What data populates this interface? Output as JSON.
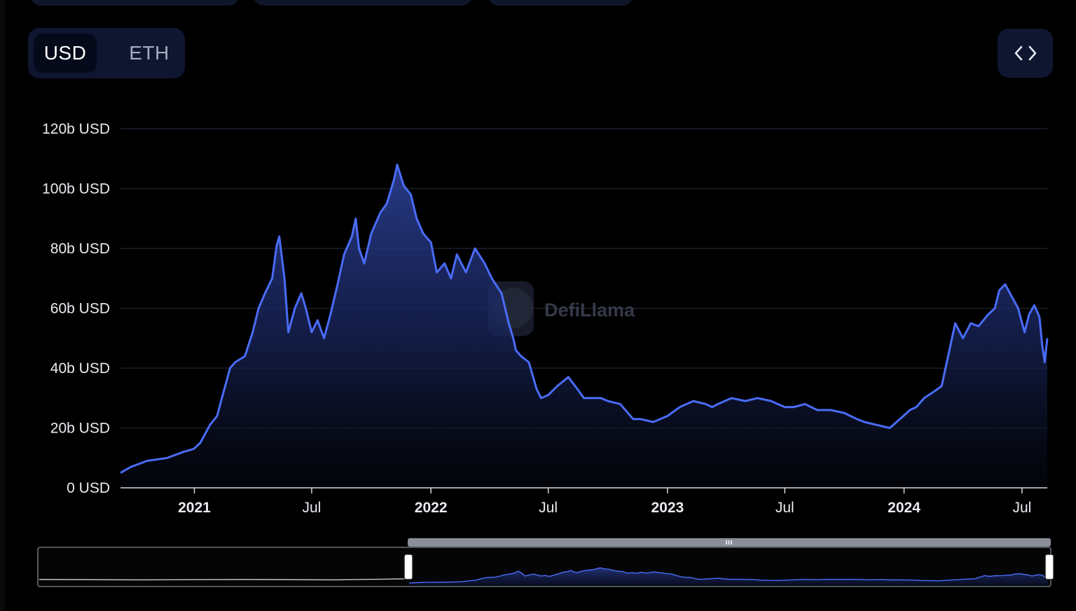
{
  "currency_toggle": {
    "options": [
      "USD",
      "ETH"
    ],
    "selected": "USD"
  },
  "embed_icon": "code-brackets-icon",
  "watermark": "DefiLlama",
  "colors": {
    "line": "#4a6cf7",
    "area_top": "#2a3d8f",
    "grid": "#1c1f2a",
    "panel": "#0e1630"
  },
  "chart_data": {
    "type": "area",
    "title": "",
    "xlabel": "",
    "ylabel": "",
    "y_tick_labels": [
      "0 USD",
      "20b USD",
      "40b USD",
      "60b USD",
      "80b USD",
      "100b USD",
      "120b USD"
    ],
    "x_tick_labels": [
      {
        "label": "2021",
        "year": true
      },
      {
        "label": "Jul",
        "year": false
      },
      {
        "label": "2022",
        "year": true
      },
      {
        "label": "Jul",
        "year": false
      },
      {
        "label": "2023",
        "year": true
      },
      {
        "label": "Jul",
        "year": false
      },
      {
        "label": "2024",
        "year": true
      },
      {
        "label": "Jul",
        "year": false
      }
    ],
    "xlim": [
      "2020-09-09",
      "2024-08-09"
    ],
    "ylim": [
      0,
      120
    ],
    "unit": "billion USD",
    "grid": true,
    "series": [
      {
        "x": [
          "2020-09-09",
          "2020-09-25",
          "2020-10-20",
          "2020-11-20",
          "2020-12-15",
          "2020-12-31",
          "2021-01-10",
          "2021-01-25",
          "2021-02-05",
          "2021-02-15",
          "2021-02-25",
          "2021-03-05",
          "2021-03-20",
          "2021-04-01",
          "2021-04-10",
          "2021-04-20",
          "2021-05-01",
          "2021-05-08",
          "2021-05-12",
          "2021-05-20",
          "2021-05-26",
          "2021-06-05",
          "2021-06-15",
          "2021-06-22",
          "2021-07-01",
          "2021-07-10",
          "2021-07-20",
          "2021-07-30",
          "2021-08-10",
          "2021-08-20",
          "2021-09-01",
          "2021-09-07",
          "2021-09-12",
          "2021-09-20",
          "2021-10-01",
          "2021-10-15",
          "2021-10-25",
          "2021-11-05",
          "2021-11-10",
          "2021-11-20",
          "2021-12-01",
          "2021-12-10",
          "2021-12-20",
          "2022-01-01",
          "2022-01-10",
          "2022-01-22",
          "2022-02-01",
          "2022-02-10",
          "2022-02-24",
          "2022-03-10",
          "2022-03-25",
          "2022-04-05",
          "2022-04-20",
          "2022-05-01",
          "2022-05-08",
          "2022-05-12",
          "2022-05-20",
          "2022-06-01",
          "2022-06-13",
          "2022-06-20",
          "2022-07-01",
          "2022-07-15",
          "2022-08-01",
          "2022-08-15",
          "2022-08-25",
          "2022-09-05",
          "2022-09-20",
          "2022-10-01",
          "2022-10-20",
          "2022-11-05",
          "2022-11-09",
          "2022-11-20",
          "2022-12-10",
          "2023-01-01",
          "2023-01-20",
          "2023-02-10",
          "2023-03-01",
          "2023-03-11",
          "2023-03-20",
          "2023-04-10",
          "2023-05-01",
          "2023-05-20",
          "2023-06-10",
          "2023-06-20",
          "2023-07-01",
          "2023-07-15",
          "2023-08-01",
          "2023-08-20",
          "2023-09-10",
          "2023-10-01",
          "2023-10-20",
          "2023-11-01",
          "2023-11-20",
          "2023-12-10",
          "2023-12-31",
          "2024-01-10",
          "2024-01-20",
          "2024-02-01",
          "2024-02-15",
          "2024-02-28",
          "2024-03-10",
          "2024-03-20",
          "2024-04-01",
          "2024-04-13",
          "2024-04-25",
          "2024-05-10",
          "2024-05-20",
          "2024-05-27",
          "2024-06-05",
          "2024-06-15",
          "2024-06-25",
          "2024-07-05",
          "2024-07-12",
          "2024-07-20",
          "2024-07-28",
          "2024-08-01",
          "2024-08-05",
          "2024-08-09"
        ],
        "y": [
          5,
          7,
          9,
          10,
          12,
          13,
          15,
          21,
          24,
          32,
          40,
          42,
          44,
          52,
          60,
          65,
          70,
          81,
          84,
          70,
          52,
          60,
          65,
          60,
          52,
          56,
          50,
          58,
          68,
          78,
          84,
          90,
          80,
          75,
          85,
          92,
          95,
          103,
          108,
          101,
          98,
          90,
          85,
          82,
          72,
          75,
          70,
          78,
          72,
          80,
          75,
          70,
          65,
          55,
          50,
          46,
          44,
          42,
          33,
          30,
          31,
          34,
          37,
          33,
          30,
          30,
          30,
          29,
          28,
          24,
          23,
          23,
          22,
          24,
          27,
          29,
          28,
          27,
          28,
          30,
          29,
          30,
          29,
          28,
          27,
          27,
          28,
          26,
          26,
          25,
          23,
          22,
          21,
          20,
          24,
          26,
          27,
          30,
          32,
          34,
          45,
          55,
          50,
          55,
          54,
          58,
          60,
          66,
          68,
          64,
          60,
          52,
          58,
          61,
          57,
          48,
          42,
          50
        ]
      }
    ]
  }
}
